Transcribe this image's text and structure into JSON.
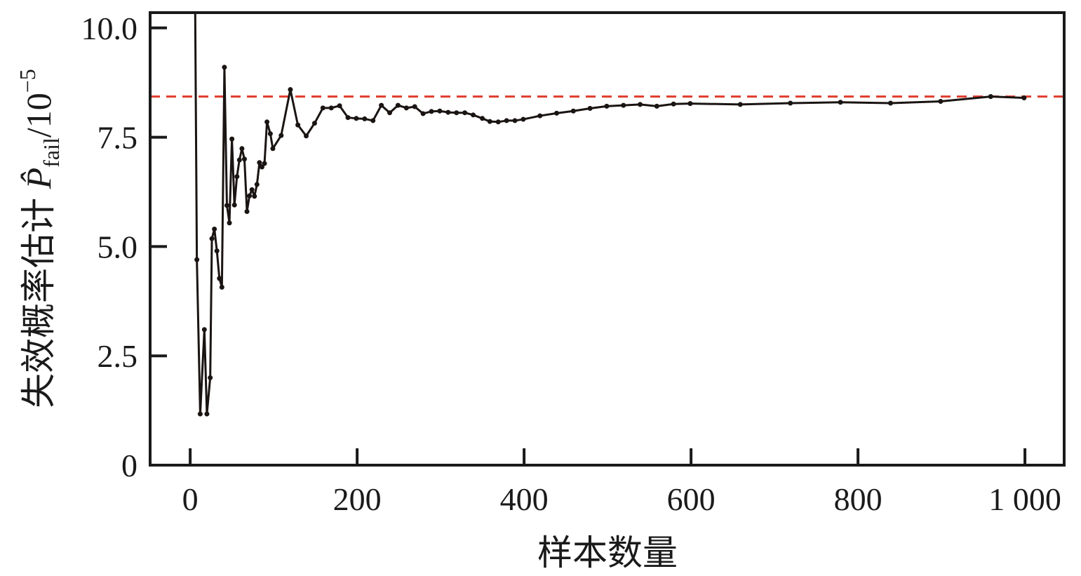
{
  "chart_data": {
    "type": "line",
    "xlabel": "样本数量",
    "ylabel": {
      "prefix": "失效概率估计 ",
      "symbol": "P̂",
      "subscript": "fail",
      "unit": "/10",
      "exponent": "−5"
    },
    "xlim": [
      -48,
      1047
    ],
    "ylim": [
      0,
      10.35
    ],
    "xticks": [
      0,
      200,
      400,
      600,
      800,
      1000
    ],
    "xtick_labels": [
      "0",
      "200",
      "400",
      "600",
      "800",
      "1 000"
    ],
    "yticks": [
      0,
      2.5,
      5.0,
      7.5,
      10.0
    ],
    "ytick_labels": [
      "0",
      "2.5",
      "5.0",
      "7.5",
      "10.0"
    ],
    "grid": false,
    "reference_line": {
      "y": 8.43,
      "color": "#e03c2c",
      "style": "dashed"
    },
    "series": [
      {
        "color": "#1a1412",
        "marker": "circle",
        "x": [
          6,
          8,
          12,
          17,
          20,
          24,
          26,
          29,
          32,
          35,
          38,
          41,
          44,
          47,
          50,
          53,
          56,
          59,
          62,
          65,
          68,
          71,
          74,
          77,
          80,
          83,
          86,
          89,
          92,
          96,
          99,
          109,
          120,
          129,
          139,
          149,
          159,
          169,
          179,
          189,
          199,
          209,
          219,
          229,
          239,
          249,
          259,
          269,
          279,
          289,
          299,
          309,
          319,
          329,
          339,
          350,
          359,
          369,
          379,
          389,
          399,
          419,
          439,
          459,
          479,
          499,
          519,
          539,
          559,
          579,
          599,
          659,
          719,
          779,
          839,
          899,
          959,
          999
        ],
        "y": [
          10.4,
          4.7,
          1.17,
          3.1,
          1.17,
          2.0,
          5.18,
          5.4,
          4.9,
          4.27,
          4.07,
          9.1,
          5.94,
          5.54,
          7.46,
          5.95,
          6.6,
          6.98,
          7.24,
          7.0,
          5.8,
          6.16,
          6.3,
          6.15,
          6.42,
          6.92,
          6.82,
          6.9,
          7.85,
          7.58,
          7.24,
          7.54,
          8.59,
          7.78,
          7.53,
          7.82,
          8.17,
          8.17,
          8.22,
          7.95,
          7.93,
          7.92,
          7.88,
          8.23,
          8.06,
          8.23,
          8.17,
          8.2,
          8.04,
          8.09,
          8.1,
          8.07,
          8.06,
          8.06,
          8.01,
          7.93,
          7.86,
          7.85,
          7.88,
          7.88,
          7.91,
          7.99,
          8.05,
          8.1,
          8.16,
          8.21,
          8.23,
          8.25,
          8.21,
          8.26,
          8.27,
          8.25,
          8.28,
          8.3,
          8.28,
          8.32,
          8.43,
          8.4
        ]
      }
    ]
  }
}
